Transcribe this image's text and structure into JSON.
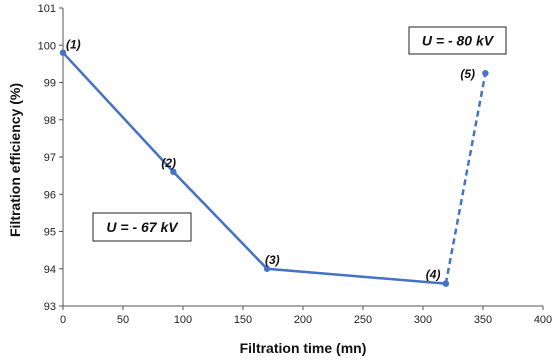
{
  "chart_data": {
    "type": "line",
    "xlabel": "Filtration time (mn)",
    "ylabel": "Filtration efficiency (%)",
    "xlim": [
      0,
      400
    ],
    "ylim": [
      93,
      101
    ],
    "xticks": [
      0,
      50,
      100,
      150,
      200,
      250,
      300,
      350,
      400
    ],
    "yticks": [
      93,
      94,
      95,
      96,
      97,
      98,
      99,
      100,
      101
    ],
    "grid": false,
    "color": "#4472C4",
    "series": [
      {
        "line_style": "solid",
        "points": [
          {
            "x": 0,
            "y": 99.8,
            "label": "(1)"
          },
          {
            "x": 92,
            "y": 96.6,
            "label": "(2)"
          },
          {
            "x": 170,
            "y": 94.0,
            "label": "(3)"
          },
          {
            "x": 319,
            "y": 93.6,
            "label": "(4)"
          }
        ]
      },
      {
        "line_style": "dashed",
        "points": [
          {
            "x": 319,
            "y": 93.6,
            "label": ""
          },
          {
            "x": 352,
            "y": 99.25,
            "label": "(5)"
          }
        ]
      }
    ],
    "annotations": [
      {
        "text": "U = - 67 kV"
      },
      {
        "text": "U = - 80 kV"
      }
    ]
  }
}
